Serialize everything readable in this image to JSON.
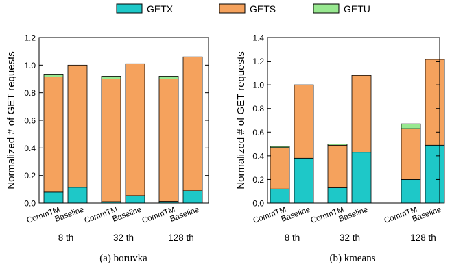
{
  "legend": [
    {
      "name": "GETX",
      "color": "#1ec8c8"
    },
    {
      "name": "GETS",
      "color": "#f5a25d"
    },
    {
      "name": "GETU",
      "color": "#98e890"
    }
  ],
  "chart_data": [
    {
      "type": "bar",
      "stacked": true,
      "caption": "(a) boruvka",
      "ylabel": "Normalized # of GET requests",
      "ylim": [
        0,
        1.2
      ],
      "yticks": [
        "0.0",
        "0.2",
        "0.4",
        "0.6",
        "0.8",
        "1.0",
        "1.2"
      ],
      "bar_labels": [
        "CommTM",
        "Baseline",
        "CommTM",
        "Baseline",
        "CommTM",
        "Baseline"
      ],
      "group_labels": [
        "8 th",
        "32 th",
        "128 th"
      ],
      "series": [
        {
          "name": "GETX",
          "values": [
            0.08,
            0.115,
            0.01,
            0.055,
            0.012,
            0.09
          ]
        },
        {
          "name": "GETS",
          "values": [
            0.835,
            0.885,
            0.89,
            0.955,
            0.888,
            0.97
          ]
        },
        {
          "name": "GETU",
          "values": [
            0.02,
            0.0,
            0.02,
            0.0,
            0.02,
            0.0
          ]
        }
      ],
      "grid": false
    },
    {
      "type": "bar",
      "stacked": true,
      "caption": "(b) kmeans",
      "ylabel": "Normalized # of GET requests",
      "ylim": [
        0,
        1.4
      ],
      "yticks": [
        "0.0",
        "0.2",
        "0.4",
        "0.6",
        "0.8",
        "1.0",
        "1.2",
        "1.4"
      ],
      "bar_labels": [
        "CommTM",
        "Baseline",
        "CommTM",
        "Baseline",
        "CommTM",
        "Baseline"
      ],
      "group_labels": [
        "8 th",
        "32 th",
        "128 th"
      ],
      "series": [
        {
          "name": "GETX",
          "values": [
            0.12,
            0.38,
            0.13,
            0.43,
            0.2,
            0.49
          ]
        },
        {
          "name": "GETS",
          "values": [
            0.35,
            0.62,
            0.36,
            0.65,
            0.43,
            0.725
          ]
        },
        {
          "name": "GETU",
          "values": [
            0.01,
            0.0,
            0.01,
            0.0,
            0.04,
            0.0
          ]
        }
      ],
      "grid": false
    }
  ]
}
